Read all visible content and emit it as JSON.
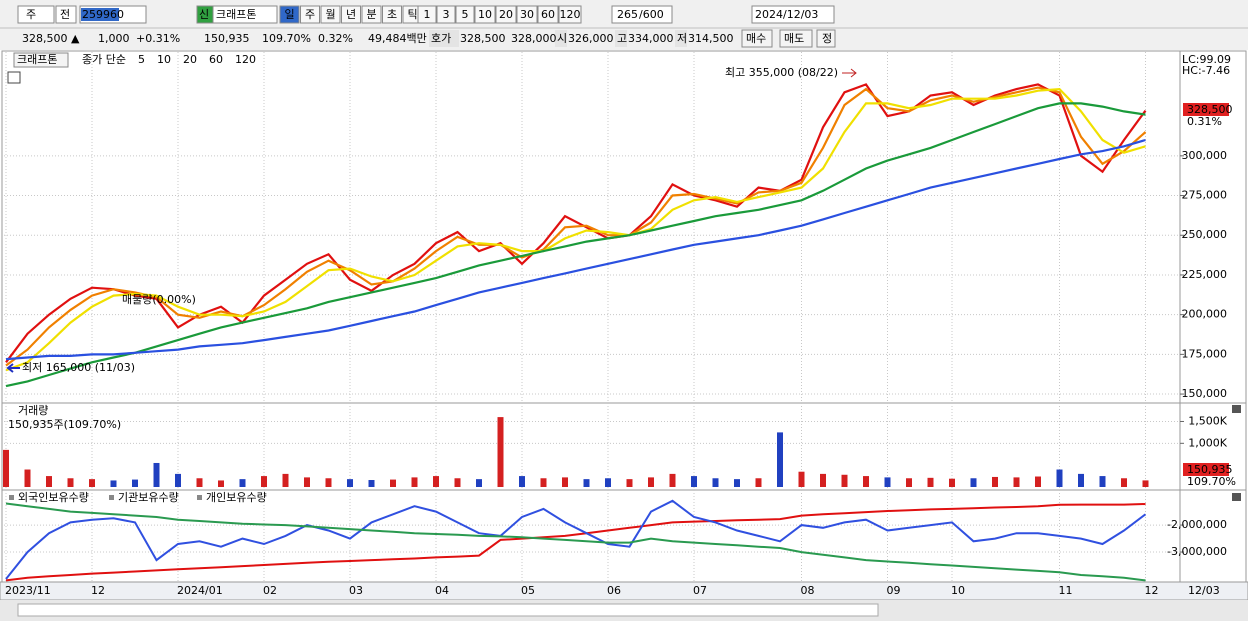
{
  "toolbar": {
    "market": "주",
    "prev": "전",
    "code": "259960",
    "badge": "신",
    "name": "크래프톤",
    "periods": [
      "일",
      "주",
      "월",
      "년",
      "분",
      "초",
      "틱"
    ],
    "intervals": [
      "1",
      "3",
      "5",
      "10",
      "20",
      "30",
      "60",
      "120"
    ],
    "count": "265",
    "max": "/600",
    "date": "2024/12/03"
  },
  "quote": {
    "price": "328,500 ▲",
    "change": "1,000",
    "rate": "+0.31%",
    "volume": "150,935",
    "volume_ratio": "109.70%",
    "turnover_rate": "0.32%",
    "amount": "49,484백만",
    "ask_label": "호가",
    "ask": "328,500",
    "bid": "328,000",
    "open_label": "시",
    "open": "326,000",
    "high_label": "고",
    "high": "334,000",
    "low_label": "저",
    "low": "314,500",
    "buy": "매수",
    "sell": "매도",
    "eval": "정"
  },
  "chart_data": [
    {
      "type": "line",
      "title": "크래프톤",
      "legend_label": "종가 단순",
      "grid": true,
      "ylim": [
        145000,
        363500
      ],
      "yticks": [
        {
          "value": 150000,
          "label": "150,000"
        },
        {
          "value": 175000,
          "label": "175,000"
        },
        {
          "value": 200000,
          "label": "200,000"
        },
        {
          "value": 225000,
          "label": "225,000"
        },
        {
          "value": 250000,
          "label": "250,000"
        },
        {
          "value": 275000,
          "label": "275,000"
        },
        {
          "value": 300000,
          "label": "300,000"
        }
      ],
      "annotations": {
        "high": "최고 355,000 (08/22)",
        "low": "최저 165,000 (11/03)",
        "supply": "매물량(0.00%)",
        "lc": "LC:99.09",
        "hc": "HC:-7.46",
        "last_price": "328,500",
        "last_rate": "0.31%"
      },
      "series": [
        {
          "name": "5",
          "color": "#e01010",
          "values": [
            170000,
            188000,
            200000,
            210000,
            217000,
            216000,
            212000,
            210000,
            192000,
            200000,
            205000,
            195000,
            212000,
            222000,
            232000,
            238000,
            222000,
            215000,
            225000,
            232000,
            245000,
            252000,
            240000,
            245000,
            232000,
            245000,
            262000,
            255000,
            248000,
            250000,
            262000,
            282000,
            275000,
            272000,
            268000,
            280000,
            278000,
            285000,
            318000,
            340000,
            345000,
            325000,
            328000,
            338000,
            340000,
            332000,
            338000,
            342000,
            345000,
            338000,
            300000,
            290000,
            310000,
            328500
          ]
        },
        {
          "name": "10",
          "color": "#f08000",
          "values": [
            168000,
            178000,
            192000,
            203000,
            212000,
            216000,
            214000,
            211000,
            200000,
            198000,
            202000,
            199000,
            206000,
            216000,
            227000,
            234000,
            228000,
            219000,
            221000,
            229000,
            240000,
            249000,
            244000,
            244000,
            236000,
            241000,
            255000,
            256000,
            250000,
            250000,
            258000,
            275000,
            276000,
            273000,
            270000,
            277000,
            278000,
            283000,
            305000,
            332000,
            342000,
            330000,
            328000,
            335000,
            338000,
            334000,
            337000,
            340000,
            343000,
            340000,
            312000,
            295000,
            303000,
            315000
          ]
        },
        {
          "name": "20",
          "color": "#f0e000",
          "values": [
            165000,
            170000,
            182000,
            195000,
            205000,
            212000,
            213000,
            212000,
            205000,
            200000,
            200000,
            199000,
            202000,
            208000,
            218000,
            228000,
            229000,
            224000,
            221000,
            225000,
            234000,
            243000,
            245000,
            244000,
            240000,
            240000,
            248000,
            253000,
            252000,
            250000,
            254000,
            266000,
            272000,
            274000,
            271000,
            274000,
            277000,
            280000,
            292000,
            315000,
            333000,
            333000,
            330000,
            332000,
            336000,
            336000,
            336000,
            338000,
            341000,
            342000,
            328000,
            310000,
            302000,
            306000
          ]
        },
        {
          "name": "60",
          "color": "#1a9a3a",
          "values": [
            155000,
            158000,
            162000,
            166000,
            170000,
            173000,
            176000,
            180000,
            184000,
            188000,
            192000,
            195000,
            198000,
            201000,
            204000,
            208000,
            211000,
            214000,
            217000,
            220000,
            223000,
            227000,
            231000,
            234000,
            237000,
            240000,
            243000,
            246000,
            248000,
            250000,
            253000,
            256000,
            259000,
            262000,
            264000,
            266000,
            269000,
            272000,
            278000,
            285000,
            292000,
            297000,
            301000,
            305000,
            310000,
            315000,
            320000,
            325000,
            330000,
            333000,
            333000,
            331000,
            328000,
            326000
          ]
        },
        {
          "name": "120",
          "color": "#2a50e0",
          "values": [
            172000,
            173000,
            174000,
            174000,
            175000,
            175000,
            176000,
            177000,
            178000,
            180000,
            181000,
            182000,
            184000,
            186000,
            188000,
            190000,
            193000,
            196000,
            199000,
            202000,
            206000,
            210000,
            214000,
            217000,
            220000,
            223000,
            226000,
            229000,
            232000,
            235000,
            238000,
            241000,
            244000,
            246000,
            248000,
            250000,
            253000,
            256000,
            260000,
            264000,
            268000,
            272000,
            276000,
            280000,
            283000,
            286000,
            289000,
            292000,
            295000,
            298000,
            301000,
            303000,
            306000,
            310000
          ]
        }
      ]
    },
    {
      "type": "bar",
      "title": "거래량",
      "subtitle": "150,935주(109.70%)",
      "up_color": "#d42020",
      "down_color": "#2040c0",
      "ylim": [
        0,
        1900000
      ],
      "yticks": [
        {
          "value": 1000000,
          "label": "1,000K"
        },
        {
          "value": 1500000,
          "label": "1,500K"
        }
      ],
      "last_value": "150,935",
      "last_ratio": "109.70%",
      "values": [
        850000,
        400000,
        250000,
        200000,
        180000,
        150000,
        170000,
        550000,
        300000,
        200000,
        150000,
        180000,
        250000,
        300000,
        220000,
        200000,
        180000,
        160000,
        170000,
        220000,
        250000,
        200000,
        180000,
        1600000,
        250000,
        200000,
        220000,
        180000,
        200000,
        180000,
        220000,
        300000,
        250000,
        200000,
        180000,
        200000,
        1250000,
        350000,
        300000,
        280000,
        250000,
        220000,
        200000,
        210000,
        190000,
        200000,
        230000,
        220000,
        240000,
        400000,
        300000,
        250000,
        200000,
        150935
      ]
    },
    {
      "type": "line",
      "grid": true,
      "ylim": [
        -4110000,
        -700000
      ],
      "yticks": [
        {
          "value": -2000000,
          "label": "-2,000,000"
        },
        {
          "value": -3000000,
          "label": "-3,000,000"
        }
      ],
      "categories": [
        "2023/11",
        null,
        null,
        null,
        "12",
        null,
        null,
        null,
        "2024/01",
        null,
        null,
        null,
        "02",
        null,
        null,
        null,
        "03",
        null,
        null,
        null,
        "04",
        null,
        null,
        null,
        "05",
        null,
        null,
        null,
        "06",
        null,
        null,
        null,
        "07",
        null,
        null,
        null,
        null,
        "08",
        null,
        null,
        null,
        "09",
        null,
        null,
        "10",
        null,
        null,
        null,
        null,
        "11",
        null,
        null,
        null,
        "12"
      ],
      "end_label": "12/03",
      "series": [
        {
          "name": "외국인보유수량",
          "color": "#e01010",
          "values": [
            -4050000,
            -3950000,
            -3900000,
            -3850000,
            -3800000,
            -3760000,
            -3720000,
            -3680000,
            -3640000,
            -3600000,
            -3560000,
            -3520000,
            -3480000,
            -3440000,
            -3400000,
            -3360000,
            -3330000,
            -3300000,
            -3270000,
            -3240000,
            -3200000,
            -3170000,
            -3130000,
            -2550000,
            -2500000,
            -2450000,
            -2400000,
            -2300000,
            -2200000,
            -2100000,
            -2000000,
            -1900000,
            -1870000,
            -1850000,
            -1820000,
            -1800000,
            -1780000,
            -1650000,
            -1600000,
            -1560000,
            -1520000,
            -1480000,
            -1450000,
            -1420000,
            -1400000,
            -1380000,
            -1350000,
            -1330000,
            -1300000,
            -1250000,
            -1240000,
            -1240000,
            -1240000,
            -1220000
          ]
        },
        {
          "name": "기관보유수량",
          "color": "#3050e0",
          "values": [
            -4000000,
            -3000000,
            -2300000,
            -1900000,
            -1800000,
            -1750000,
            -1900000,
            -3300000,
            -2700000,
            -2600000,
            -2800000,
            -2500000,
            -2700000,
            -2400000,
            -2000000,
            -2200000,
            -2500000,
            -1900000,
            -1600000,
            -1300000,
            -1500000,
            -1900000,
            -2300000,
            -2400000,
            -1700000,
            -1400000,
            -1900000,
            -2300000,
            -2700000,
            -2800000,
            -1500000,
            -1100000,
            -1700000,
            -1900000,
            -2200000,
            -2400000,
            -2600000,
            -2000000,
            -2100000,
            -1900000,
            -1800000,
            -2200000,
            -2100000,
            -2000000,
            -1900000,
            -2600000,
            -2500000,
            -2300000,
            -2300000,
            -2400000,
            -2500000,
            -2700000,
            -2200000,
            -1600000
          ]
        },
        {
          "name": "개인보유수량",
          "color": "#2a9a50",
          "values": [
            -1200000,
            -1300000,
            -1400000,
            -1500000,
            -1550000,
            -1600000,
            -1650000,
            -1700000,
            -1800000,
            -1850000,
            -1900000,
            -1950000,
            -1980000,
            -2000000,
            -2050000,
            -2100000,
            -2150000,
            -2200000,
            -2250000,
            -2300000,
            -2330000,
            -2360000,
            -2400000,
            -2420000,
            -2450000,
            -2500000,
            -2550000,
            -2600000,
            -2650000,
            -2650000,
            -2500000,
            -2600000,
            -2650000,
            -2700000,
            -2750000,
            -2800000,
            -2850000,
            -3000000,
            -3100000,
            -3200000,
            -3300000,
            -3350000,
            -3400000,
            -3450000,
            -3500000,
            -3550000,
            -3600000,
            -3650000,
            -3700000,
            -3750000,
            -3850000,
            -3900000,
            -3950000,
            -4050000
          ]
        }
      ]
    }
  ]
}
